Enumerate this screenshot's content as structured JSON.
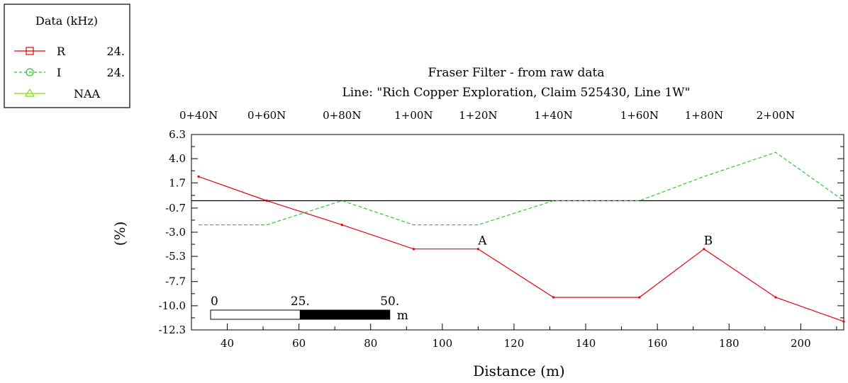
{
  "legend": {
    "title": "Data (kHz)",
    "entries": [
      {
        "marker": "square",
        "name": "R",
        "freq": "24.",
        "color": "#e8000b",
        "dash": false
      },
      {
        "marker": "circle",
        "name": "I",
        "freq": "24.",
        "color": "#2ec82e",
        "dash": true
      },
      {
        "marker": "triangle",
        "name": "NAA",
        "freq": "",
        "color": "#7fe000",
        "dash": false
      }
    ]
  },
  "chart_data": {
    "type": "line",
    "title": "Fraser Filter - from raw data",
    "subtitle": "Line: \"Rich Copper Exploration, Claim 525430, Line 1W\"",
    "xlabel": "Distance (m)",
    "ylabel": "(%)",
    "xlim": [
      30,
      212
    ],
    "ylim": [
      -12.3,
      6.3
    ],
    "x_ticks": [
      40,
      60,
      80,
      100,
      120,
      140,
      160,
      180,
      200
    ],
    "y_ticks": [
      "6.3",
      "4.0",
      "1.7",
      "-0.7",
      "-3.0",
      "-5.3",
      "-7.7",
      "-10.0",
      "-12.3"
    ],
    "y_tick_values": [
      6.3,
      4.0,
      1.7,
      -0.7,
      -3.0,
      -5.3,
      -7.7,
      -10.0,
      -12.3
    ],
    "station_labels": [
      {
        "label": "0+40N",
        "x": 32
      },
      {
        "label": "0+60N",
        "x": 51
      },
      {
        "label": "0+80N",
        "x": 72
      },
      {
        "label": "1+00N",
        "x": 92
      },
      {
        "label": "1+20N",
        "x": 110
      },
      {
        "label": "1+40N",
        "x": 131
      },
      {
        "label": "1+60N",
        "x": 155
      },
      {
        "label": "1+80N",
        "x": 173
      },
      {
        "label": "2+00N",
        "x": 193
      }
    ],
    "zero_line": 0,
    "series": [
      {
        "name": "R",
        "color": "#e8000b",
        "dash": false,
        "x": [
          32,
          51,
          72,
          92,
          110,
          131,
          155,
          173,
          193,
          212
        ],
        "y": [
          2.3,
          0.0,
          -2.3,
          -4.6,
          -4.6,
          -9.2,
          -9.2,
          -4.6,
          -9.2,
          -11.5
        ]
      },
      {
        "name": "I",
        "color": "#2ec82e",
        "dash": true,
        "x": [
          32,
          51,
          72,
          92,
          110,
          131,
          155,
          173,
          193,
          212
        ],
        "y": [
          -2.3,
          -2.3,
          0.0,
          -2.3,
          -2.3,
          0.0,
          0.0,
          2.3,
          4.6,
          0.0
        ]
      }
    ],
    "annotations": [
      {
        "text": "A",
        "x": 110,
        "y": -4.6
      },
      {
        "text": "B",
        "x": 173,
        "y": -4.6
      }
    ],
    "scale_bar": {
      "labels": [
        "0",
        "25.",
        "50."
      ],
      "unit": "m",
      "length": 50
    }
  }
}
